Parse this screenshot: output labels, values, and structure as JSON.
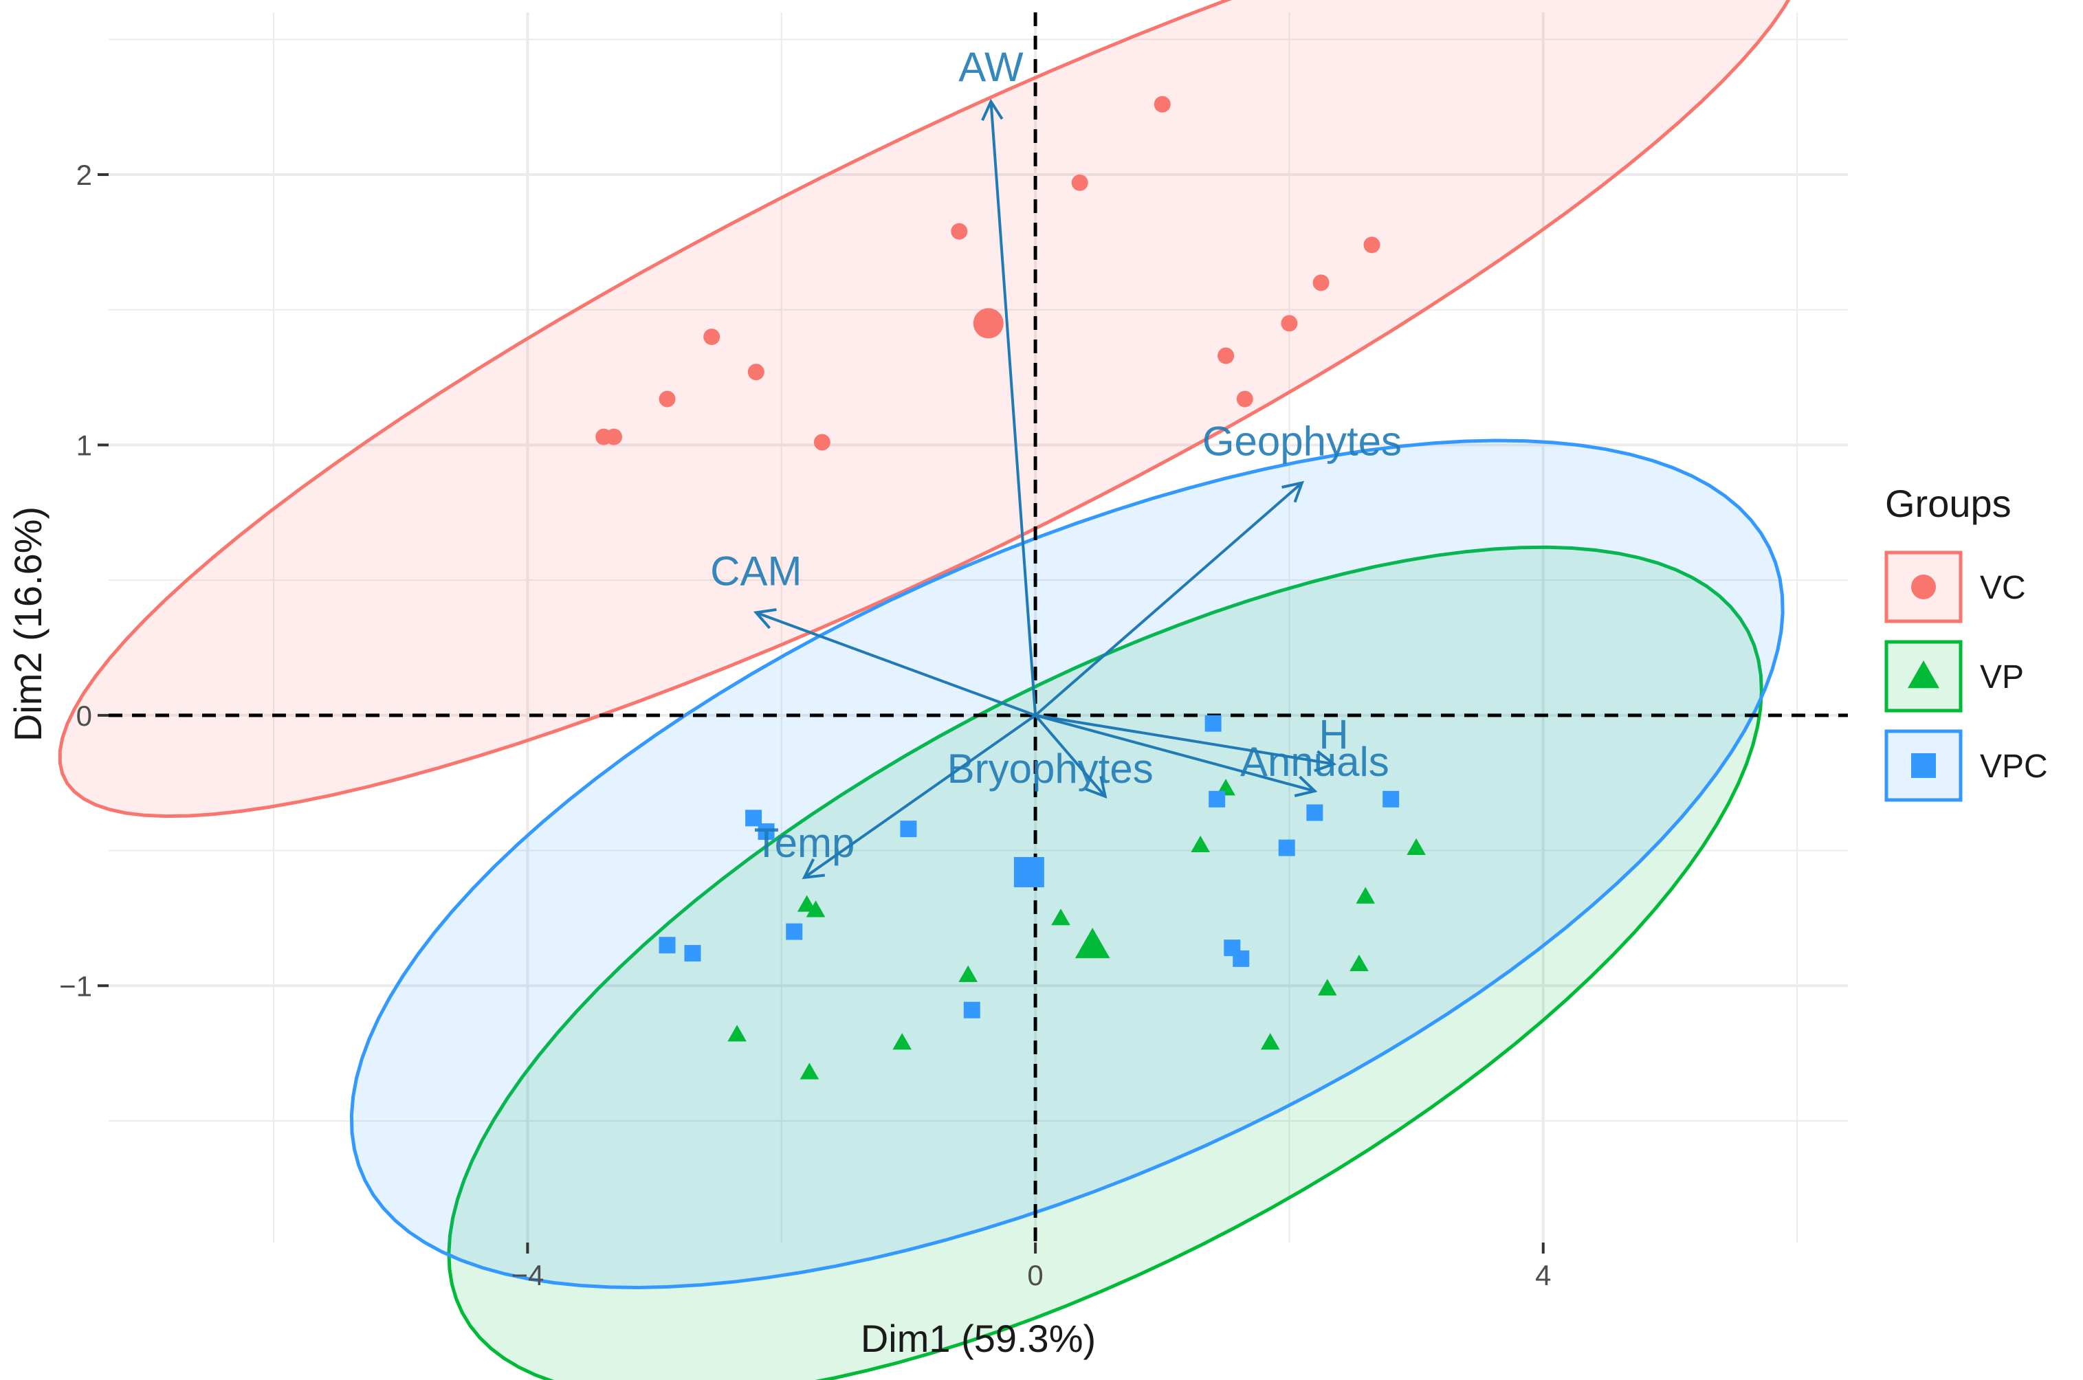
{
  "chart_data": {
    "type": "scatter",
    "subtype": "pca-biplot",
    "xlabel": "Dim1 (59.3%)",
    "ylabel": "Dim2 (16.6%)",
    "xlim": [
      -7.3,
      6.4
    ],
    "ylim": [
      -1.95,
      2.6
    ],
    "xticks": [
      -4,
      0,
      4
    ],
    "xtick_labels": [
      "−4",
      "0",
      "4"
    ],
    "yticks": [
      -1,
      0,
      1,
      2
    ],
    "ytick_labels": [
      "−1",
      "0",
      "1",
      "2"
    ],
    "grid": true,
    "reference_lines": {
      "x": 0,
      "y": 0,
      "style": "dashed"
    },
    "legend": {
      "title": "Groups",
      "position": "right"
    },
    "groups": [
      {
        "name": "VC",
        "color": "#F8766D",
        "shape": "circle",
        "points": [
          [
            1.0,
            2.26
          ],
          [
            0.35,
            1.97
          ],
          [
            -0.6,
            1.79
          ],
          [
            2.65,
            1.74
          ],
          [
            2.25,
            1.6
          ],
          [
            2.0,
            1.45
          ],
          [
            -2.55,
            1.4
          ],
          [
            -2.2,
            1.27
          ],
          [
            -2.9,
            1.17
          ],
          [
            1.5,
            1.33
          ],
          [
            1.65,
            1.17
          ],
          [
            -3.4,
            1.03
          ],
          [
            -3.32,
            1.03
          ],
          [
            -1.68,
            1.01
          ]
        ],
        "centroid": [
          -0.37,
          1.45
        ],
        "ellipse": {
          "center": [
            -0.8,
            1.35
          ],
          "rx": 7.05,
          "ry": 0.82,
          "angle": 12.5
        }
      },
      {
        "name": "VP",
        "color": "#00BA38",
        "shape": "triangle",
        "points": [
          [
            1.5,
            -0.27
          ],
          [
            1.3,
            -0.48
          ],
          [
            3.0,
            -0.49
          ],
          [
            2.6,
            -0.67
          ],
          [
            -1.8,
            -0.7
          ],
          [
            -1.73,
            -0.72
          ],
          [
            0.2,
            -0.75
          ],
          [
            -0.53,
            -0.96
          ],
          [
            2.55,
            -0.92
          ],
          [
            2.3,
            -1.01
          ],
          [
            -2.35,
            -1.18
          ],
          [
            -1.05,
            -1.21
          ],
          [
            1.85,
            -1.21
          ],
          [
            -1.78,
            -1.32
          ]
        ],
        "centroid": [
          0.45,
          -0.85
        ],
        "ellipse": {
          "center": [
            0.55,
            -0.95
          ],
          "rx": 5.28,
          "ry": 1.15,
          "angle": 12.0
        }
      },
      {
        "name": "VPC",
        "color": "#3399FF",
        "shape": "square",
        "points": [
          [
            1.4,
            -0.03
          ],
          [
            1.43,
            -0.31
          ],
          [
            2.8,
            -0.31
          ],
          [
            2.2,
            -0.36
          ],
          [
            1.98,
            -0.49
          ],
          [
            -2.22,
            -0.38
          ],
          [
            -2.12,
            -0.43
          ],
          [
            -1.0,
            -0.42
          ],
          [
            -2.9,
            -0.85
          ],
          [
            -2.7,
            -0.88
          ],
          [
            -1.9,
            -0.8
          ],
          [
            1.55,
            -0.86
          ],
          [
            1.62,
            -0.9
          ],
          [
            -0.5,
            -1.09
          ]
        ],
        "centroid": [
          -0.05,
          -0.58
        ],
        "ellipse": {
          "center": [
            0.25,
            -0.55
          ],
          "rx": 5.72,
          "ry": 1.23,
          "angle": 10.0
        }
      }
    ],
    "variables": [
      {
        "name": "AW",
        "end": [
          -0.35,
          2.27
        ]
      },
      {
        "name": "Geophytes",
        "end": [
          2.1,
          0.86
        ]
      },
      {
        "name": "CAM",
        "end": [
          -2.2,
          0.38
        ]
      },
      {
        "name": "Bryophytes",
        "end": [
          0.55,
          -0.3
        ]
      },
      {
        "name": "Annuals",
        "end": [
          2.2,
          -0.28
        ]
      },
      {
        "name": "H",
        "end": [
          2.35,
          -0.18
        ]
      },
      {
        "name": "Temp",
        "end": [
          -1.82,
          -0.6
        ]
      }
    ]
  }
}
